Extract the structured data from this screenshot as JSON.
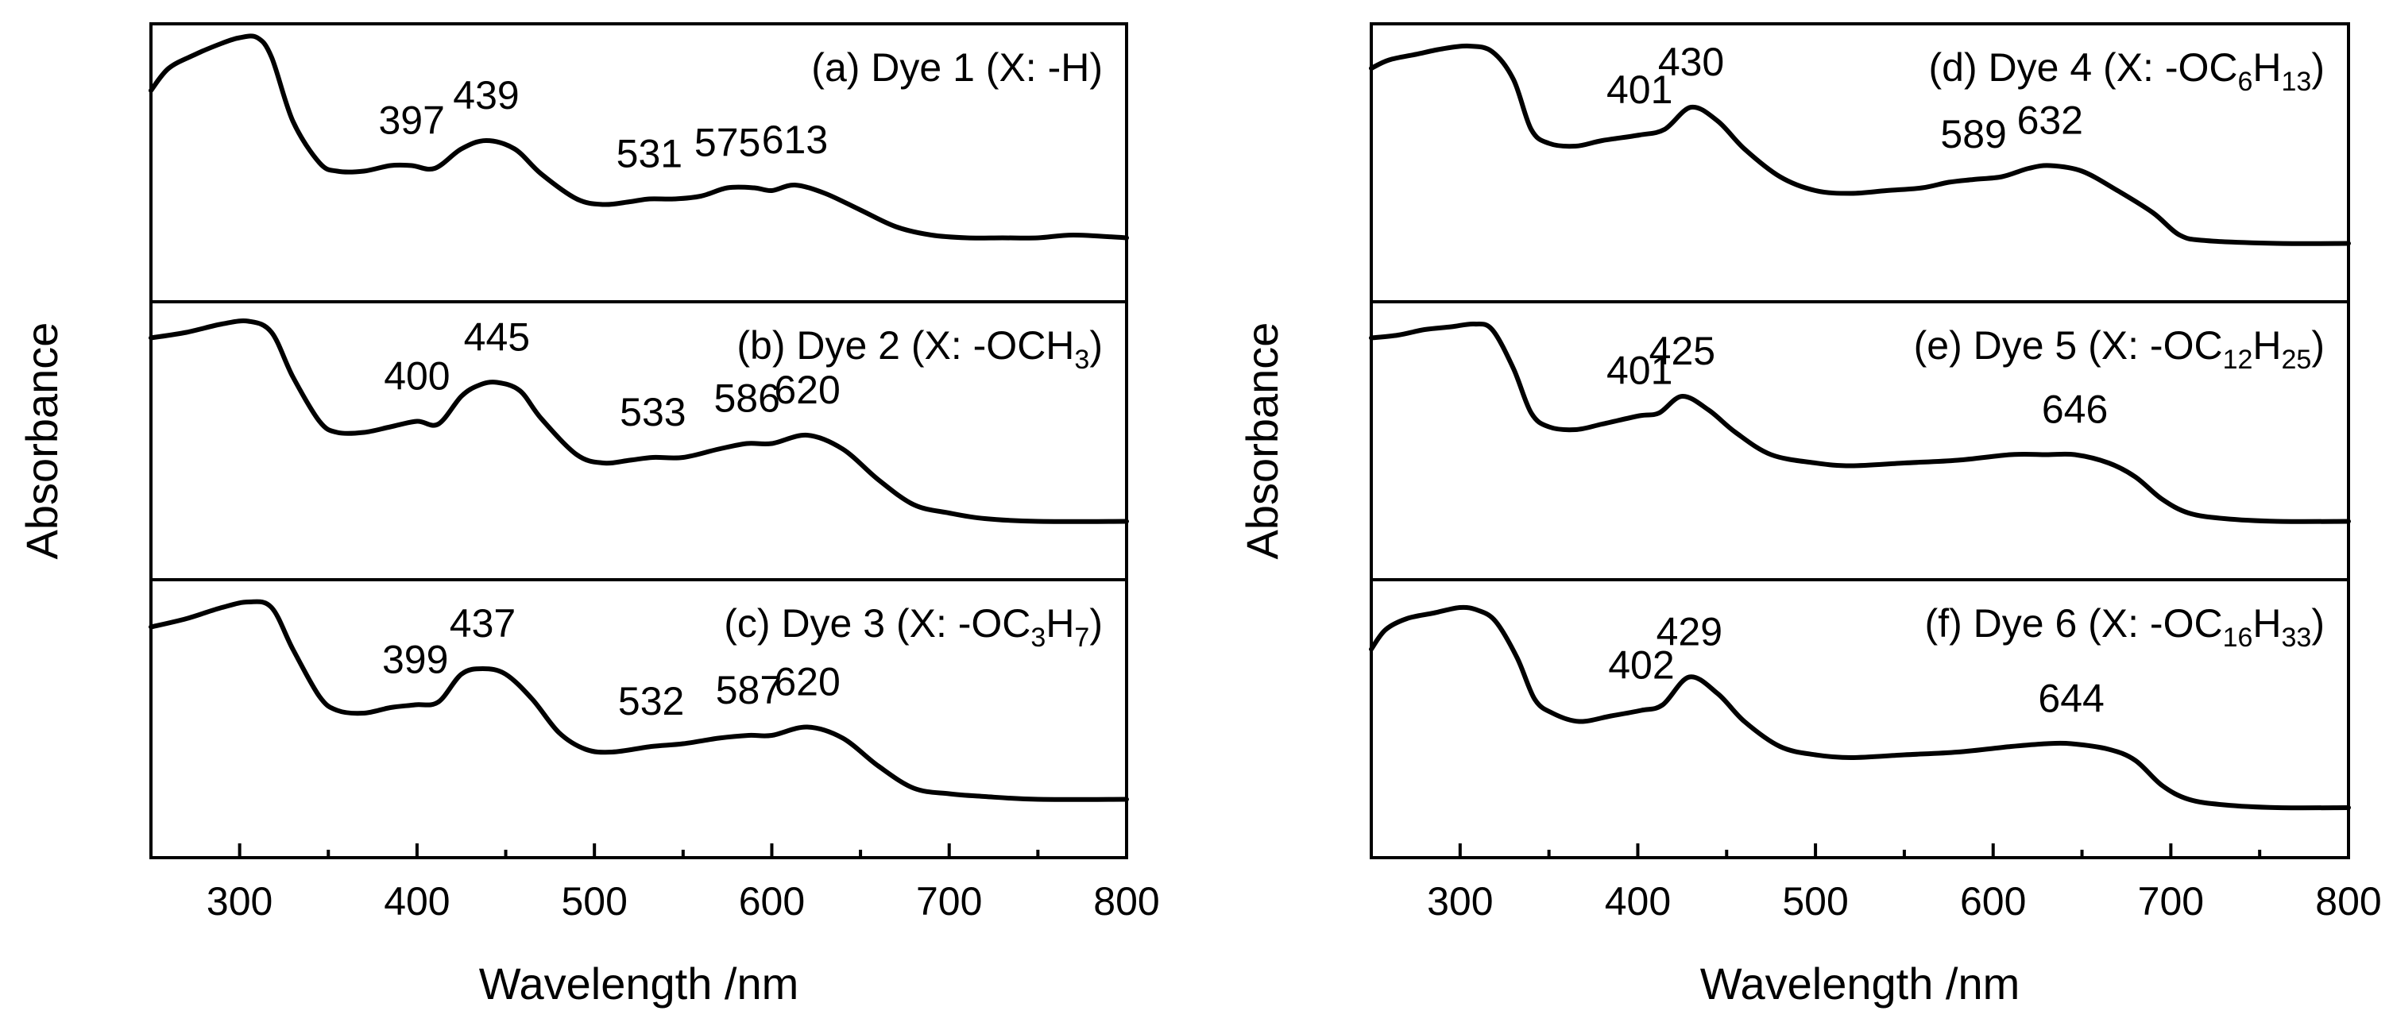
{
  "chart_data": [
    {
      "type": "line",
      "xlabel": "Wavelength /nm",
      "ylabel": "Absorbance",
      "xlim": [
        250,
        800
      ],
      "ylim": [
        0,
        1
      ],
      "xticks": [
        300,
        400,
        500,
        600,
        700,
        800
      ],
      "panels": [
        {
          "id": "a",
          "title": "(a) Dye 1 (X: -H)",
          "title_parts": [
            {
              "t": "(a) Dye 1 (X: -H)"
            }
          ],
          "peaks": [
            {
              "label": "397",
              "x": 397
            },
            {
              "label": "439",
              "x": 439
            },
            {
              "label": "531",
              "x": 531
            },
            {
              "label": "575",
              "x": 575
            },
            {
              "label": "613",
              "x": 613
            }
          ],
          "x": [
            250,
            260,
            275,
            290,
            300,
            310,
            318,
            330,
            345,
            355,
            370,
            385,
            397,
            410,
            425,
            439,
            455,
            470,
            490,
            505,
            520,
            531,
            545,
            560,
            575,
            590,
            600,
            613,
            630,
            650,
            670,
            690,
            710,
            730,
            750,
            770,
            800
          ],
          "y": [
            0.76,
            0.84,
            0.89,
            0.93,
            0.95,
            0.95,
            0.88,
            0.65,
            0.5,
            0.47,
            0.47,
            0.49,
            0.49,
            0.48,
            0.55,
            0.58,
            0.55,
            0.46,
            0.37,
            0.35,
            0.36,
            0.37,
            0.37,
            0.38,
            0.41,
            0.41,
            0.4,
            0.42,
            0.39,
            0.33,
            0.27,
            0.24,
            0.23,
            0.23,
            0.23,
            0.24,
            0.23
          ]
        },
        {
          "id": "b",
          "title": "(b) Dye 2 (X: -OCH3)",
          "title_parts": [
            {
              "t": "(b) Dye 2 (X: -OCH"
            },
            {
              "t": "3",
              "sub": true
            },
            {
              "t": ")"
            }
          ],
          "peaks": [
            {
              "label": "400",
              "x": 400
            },
            {
              "label": "445",
              "x": 445
            },
            {
              "label": "533",
              "x": 533
            },
            {
              "label": "586",
              "x": 586
            },
            {
              "label": "620",
              "x": 620
            }
          ],
          "x": [
            250,
            270,
            290,
            305,
            318,
            330,
            345,
            355,
            370,
            385,
            400,
            412,
            425,
            435,
            445,
            458,
            470,
            490,
            505,
            520,
            533,
            550,
            570,
            586,
            600,
            620,
            640,
            660,
            680,
            700,
            720,
            750,
            800
          ],
          "y": [
            0.87,
            0.89,
            0.92,
            0.93,
            0.89,
            0.73,
            0.57,
            0.53,
            0.53,
            0.55,
            0.57,
            0.56,
            0.66,
            0.7,
            0.71,
            0.68,
            0.58,
            0.45,
            0.42,
            0.43,
            0.44,
            0.44,
            0.47,
            0.49,
            0.49,
            0.52,
            0.47,
            0.36,
            0.27,
            0.24,
            0.22,
            0.21,
            0.21
          ]
        },
        {
          "id": "c",
          "title": "(c) Dye 3 (X: -OC3H7)",
          "title_parts": [
            {
              "t": "(c) Dye 3 (X: -OC"
            },
            {
              "t": "3",
              "sub": true
            },
            {
              "t": "H"
            },
            {
              "t": "7",
              "sub": true
            },
            {
              "t": ")"
            }
          ],
          "peaks": [
            {
              "label": "399",
              "x": 399
            },
            {
              "label": "437",
              "x": 437
            },
            {
              "label": "532",
              "x": 532
            },
            {
              "label": "587",
              "x": 587
            },
            {
              "label": "620",
              "x": 620
            }
          ],
          "x": [
            250,
            270,
            290,
            305,
            318,
            330,
            345,
            355,
            370,
            385,
            399,
            412,
            425,
            437,
            450,
            465,
            480,
            495,
            510,
            532,
            550,
            570,
            587,
            600,
            620,
            640,
            660,
            680,
            700,
            720,
            750,
            800
          ],
          "y": [
            0.83,
            0.86,
            0.9,
            0.92,
            0.9,
            0.75,
            0.58,
            0.53,
            0.52,
            0.54,
            0.55,
            0.56,
            0.66,
            0.68,
            0.66,
            0.57,
            0.45,
            0.39,
            0.38,
            0.4,
            0.41,
            0.43,
            0.44,
            0.44,
            0.47,
            0.43,
            0.33,
            0.25,
            0.23,
            0.22,
            0.21,
            0.21
          ]
        },
        {
          "id": "d",
          "title": "(d) Dye 4 (X: -OC6H13)",
          "title_parts": [
            {
              "t": "(d) Dye 4 (X: -OC"
            },
            {
              "t": "6",
              "sub": true
            },
            {
              "t": "H"
            },
            {
              "t": "13",
              "sub": true
            },
            {
              "t": ")"
            }
          ],
          "peaks": [
            {
              "label": "401",
              "x": 401
            },
            {
              "label": "430",
              "x": 430
            },
            {
              "label": "589",
              "x": 589
            },
            {
              "label": "632",
              "x": 632
            }
          ],
          "x": [
            250,
            260,
            275,
            290,
            305,
            318,
            330,
            340,
            350,
            365,
            380,
            401,
            415,
            430,
            445,
            460,
            480,
            500,
            520,
            540,
            560,
            575,
            589,
            605,
            620,
            632,
            650,
            670,
            690,
            705,
            720,
            760,
            800
          ],
          "y": [
            0.84,
            0.87,
            0.89,
            0.91,
            0.92,
            0.9,
            0.8,
            0.62,
            0.57,
            0.56,
            0.58,
            0.6,
            0.62,
            0.7,
            0.65,
            0.55,
            0.45,
            0.4,
            0.39,
            0.4,
            0.41,
            0.43,
            0.44,
            0.45,
            0.48,
            0.49,
            0.47,
            0.4,
            0.32,
            0.24,
            0.22,
            0.21,
            0.21
          ]
        },
        {
          "id": "e",
          "title": "(e) Dye 5 (X: -OC12H25)",
          "title_parts": [
            {
              "t": "(e) Dye 5 (X: -OC"
            },
            {
              "t": "12",
              "sub": true
            },
            {
              "t": "H"
            },
            {
              "t": "25",
              "sub": true
            },
            {
              "t": ")"
            }
          ],
          "peaks": [
            {
              "label": "401",
              "x": 401
            },
            {
              "label": "425",
              "x": 425
            },
            {
              "label": "646",
              "x": 646
            }
          ],
          "x": [
            250,
            265,
            280,
            295,
            308,
            318,
            330,
            340,
            350,
            365,
            380,
            401,
            412,
            425,
            440,
            455,
            475,
            500,
            520,
            550,
            580,
            610,
            630,
            646,
            665,
            680,
            695,
            710,
            730,
            760,
            800
          ],
          "y": [
            0.87,
            0.88,
            0.9,
            0.91,
            0.92,
            0.9,
            0.76,
            0.6,
            0.55,
            0.54,
            0.56,
            0.59,
            0.6,
            0.66,
            0.61,
            0.53,
            0.45,
            0.42,
            0.41,
            0.42,
            0.43,
            0.45,
            0.45,
            0.45,
            0.42,
            0.37,
            0.29,
            0.24,
            0.22,
            0.21,
            0.21
          ]
        },
        {
          "id": "f",
          "title": "(f) Dye 6 (X: -OC16H33)",
          "title_parts": [
            {
              "t": "(f) Dye 6 (X: -OC"
            },
            {
              "t": "16",
              "sub": true
            },
            {
              "t": "H"
            },
            {
              "t": "33",
              "sub": true
            },
            {
              "t": ")"
            }
          ],
          "peaks": [
            {
              "label": "402",
              "x": 402
            },
            {
              "label": "429",
              "x": 429
            },
            {
              "label": "644",
              "x": 644
            }
          ],
          "x": [
            250,
            258,
            270,
            285,
            300,
            310,
            320,
            332,
            342,
            352,
            367,
            385,
            402,
            414,
            429,
            445,
            460,
            480,
            500,
            520,
            550,
            580,
            610,
            630,
            644,
            665,
            680,
            695,
            710,
            730,
            760,
            800
          ],
          "y": [
            0.75,
            0.82,
            0.86,
            0.88,
            0.9,
            0.89,
            0.85,
            0.72,
            0.57,
            0.52,
            0.49,
            0.51,
            0.53,
            0.55,
            0.65,
            0.59,
            0.49,
            0.4,
            0.37,
            0.36,
            0.37,
            0.38,
            0.4,
            0.41,
            0.41,
            0.39,
            0.35,
            0.26,
            0.21,
            0.19,
            0.18,
            0.18
          ]
        }
      ]
    }
  ]
}
